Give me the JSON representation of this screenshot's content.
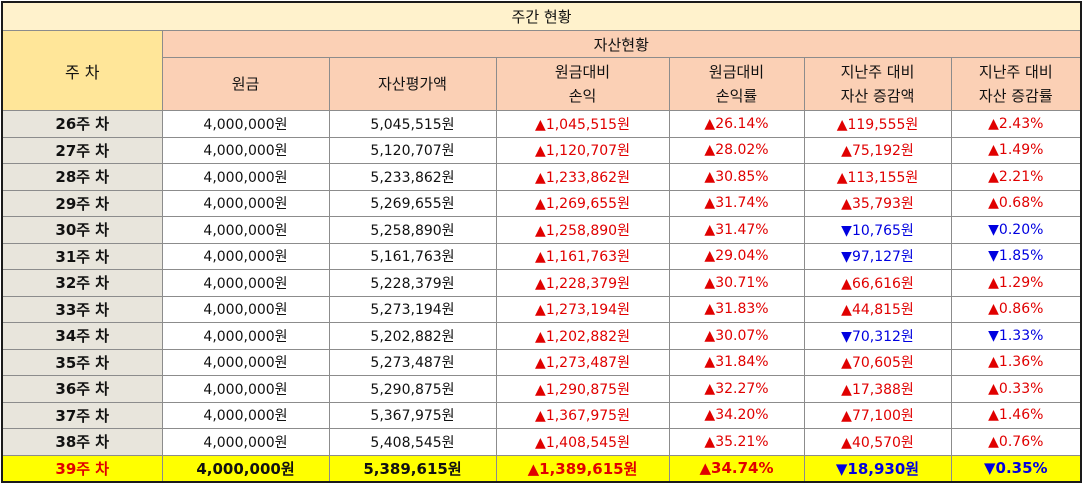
{
  "title": "주간 현황",
  "week_header": "주 차",
  "group_header": "자산현황",
  "columns": [
    {
      "line1": "원금",
      "line2": ""
    },
    {
      "line1": "자산평가액",
      "line2": ""
    },
    {
      "line1": "원금대비",
      "line2": "손익"
    },
    {
      "line1": "원금대비",
      "line2": "손익률"
    },
    {
      "line1": "지난주 대비",
      "line2": "자산 증감액"
    },
    {
      "line1": "지난주 대비",
      "line2": "자산 증감률"
    }
  ],
  "colors": {
    "up": "#e00000",
    "down": "#0000e0",
    "highlight": "#ffff00"
  },
  "rows": [
    {
      "week": "26주 차",
      "principal": "4,000,000원",
      "valuation": "5,045,515원",
      "pnl": "▲1,045,515원",
      "pnl_dir": "up",
      "pnl_rate": "▲26.14%",
      "pnl_rate_dir": "up",
      "wow_amt": "▲119,555원",
      "wow_amt_dir": "up",
      "wow_rate": "▲2.43%",
      "wow_rate_dir": "up"
    },
    {
      "week": "27주 차",
      "principal": "4,000,000원",
      "valuation": "5,120,707원",
      "pnl": "▲1,120,707원",
      "pnl_dir": "up",
      "pnl_rate": "▲28.02%",
      "pnl_rate_dir": "up",
      "wow_amt": "▲75,192원",
      "wow_amt_dir": "up",
      "wow_rate": "▲1.49%",
      "wow_rate_dir": "up"
    },
    {
      "week": "28주 차",
      "principal": "4,000,000원",
      "valuation": "5,233,862원",
      "pnl": "▲1,233,862원",
      "pnl_dir": "up",
      "pnl_rate": "▲30.85%",
      "pnl_rate_dir": "up",
      "wow_amt": "▲113,155원",
      "wow_amt_dir": "up",
      "wow_rate": "▲2.21%",
      "wow_rate_dir": "up"
    },
    {
      "week": "29주 차",
      "principal": "4,000,000원",
      "valuation": "5,269,655원",
      "pnl": "▲1,269,655원",
      "pnl_dir": "up",
      "pnl_rate": "▲31.74%",
      "pnl_rate_dir": "up",
      "wow_amt": "▲35,793원",
      "wow_amt_dir": "up",
      "wow_rate": "▲0.68%",
      "wow_rate_dir": "up"
    },
    {
      "week": "30주 차",
      "principal": "4,000,000원",
      "valuation": "5,258,890원",
      "pnl": "▲1,258,890원",
      "pnl_dir": "up",
      "pnl_rate": "▲31.47%",
      "pnl_rate_dir": "up",
      "wow_amt": "▼10,765원",
      "wow_amt_dir": "down",
      "wow_rate": "▼0.20%",
      "wow_rate_dir": "down"
    },
    {
      "week": "31주 차",
      "principal": "4,000,000원",
      "valuation": "5,161,763원",
      "pnl": "▲1,161,763원",
      "pnl_dir": "up",
      "pnl_rate": "▲29.04%",
      "pnl_rate_dir": "up",
      "wow_amt": "▼97,127원",
      "wow_amt_dir": "down",
      "wow_rate": "▼1.85%",
      "wow_rate_dir": "down"
    },
    {
      "week": "32주 차",
      "principal": "4,000,000원",
      "valuation": "5,228,379원",
      "pnl": "▲1,228,379원",
      "pnl_dir": "up",
      "pnl_rate": "▲30.71%",
      "pnl_rate_dir": "up",
      "wow_amt": "▲66,616원",
      "wow_amt_dir": "up",
      "wow_rate": "▲1.29%",
      "wow_rate_dir": "up"
    },
    {
      "week": "33주 차",
      "principal": "4,000,000원",
      "valuation": "5,273,194원",
      "pnl": "▲1,273,194원",
      "pnl_dir": "up",
      "pnl_rate": "▲31.83%",
      "pnl_rate_dir": "up",
      "wow_amt": "▲44,815원",
      "wow_amt_dir": "up",
      "wow_rate": "▲0.86%",
      "wow_rate_dir": "up"
    },
    {
      "week": "34주 차",
      "principal": "4,000,000원",
      "valuation": "5,202,882원",
      "pnl": "▲1,202,882원",
      "pnl_dir": "up",
      "pnl_rate": "▲30.07%",
      "pnl_rate_dir": "up",
      "wow_amt": "▼70,312원",
      "wow_amt_dir": "down",
      "wow_rate": "▼1.33%",
      "wow_rate_dir": "down"
    },
    {
      "week": "35주 차",
      "principal": "4,000,000원",
      "valuation": "5,273,487원",
      "pnl": "▲1,273,487원",
      "pnl_dir": "up",
      "pnl_rate": "▲31.84%",
      "pnl_rate_dir": "up",
      "wow_amt": "▲70,605원",
      "wow_amt_dir": "up",
      "wow_rate": "▲1.36%",
      "wow_rate_dir": "up"
    },
    {
      "week": "36주 차",
      "principal": "4,000,000원",
      "valuation": "5,290,875원",
      "pnl": "▲1,290,875원",
      "pnl_dir": "up",
      "pnl_rate": "▲32.27%",
      "pnl_rate_dir": "up",
      "wow_amt": "▲17,388원",
      "wow_amt_dir": "up",
      "wow_rate": "▲0.33%",
      "wow_rate_dir": "up"
    },
    {
      "week": "37주 차",
      "principal": "4,000,000원",
      "valuation": "5,367,975원",
      "pnl": "▲1,367,975원",
      "pnl_dir": "up",
      "pnl_rate": "▲34.20%",
      "pnl_rate_dir": "up",
      "wow_amt": "▲77,100원",
      "wow_amt_dir": "up",
      "wow_rate": "▲1.46%",
      "wow_rate_dir": "up"
    },
    {
      "week": "38주 차",
      "principal": "4,000,000원",
      "valuation": "5,408,545원",
      "pnl": "▲1,408,545원",
      "pnl_dir": "up",
      "pnl_rate": "▲35.21%",
      "pnl_rate_dir": "up",
      "wow_amt": "▲40,570원",
      "wow_amt_dir": "up",
      "wow_rate": "▲0.76%",
      "wow_rate_dir": "up"
    },
    {
      "week": "39주 차",
      "principal": "4,000,000원",
      "valuation": "5,389,615원",
      "pnl": "▲1,389,615원",
      "pnl_dir": "up",
      "pnl_rate": "▲34.74%",
      "pnl_rate_dir": "up",
      "wow_amt": "▼18,930원",
      "wow_amt_dir": "down",
      "wow_rate": "▼0.35%",
      "wow_rate_dir": "down"
    }
  ]
}
